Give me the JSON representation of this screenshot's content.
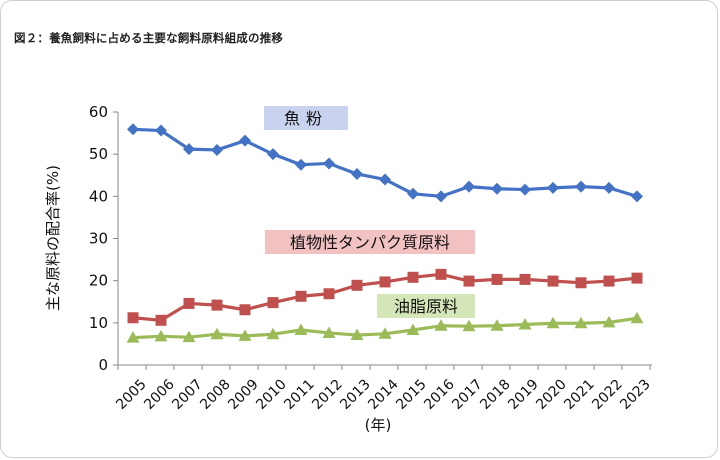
{
  "figure": {
    "title": "図２：養魚飼料に占める主要な飼料原料組成の推移"
  },
  "chart_data": {
    "type": "line",
    "title": "図２：養魚飼料に占める主要な飼料原料組成の推移",
    "xlabel": "(年)",
    "ylabel": "主な原料の配合率(%)",
    "ylim": [
      0,
      60
    ],
    "yticks": [
      0,
      10,
      20,
      30,
      40,
      50,
      60
    ],
    "grid": false,
    "legend": "inline-labels",
    "x": [
      2005,
      2006,
      2007,
      2008,
      2009,
      2010,
      2011,
      2012,
      2013,
      2014,
      2015,
      2016,
      2017,
      2018,
      2019,
      2020,
      2021,
      2022,
      2023
    ],
    "series": [
      {
        "name": "魚粉",
        "color": "#4472c4",
        "marker": "diamond",
        "label_bg": "#c9d3ef",
        "values": [
          55.9,
          55.6,
          51.2,
          51.0,
          53.2,
          50.0,
          47.5,
          47.8,
          45.3,
          44.0,
          40.6,
          40.0,
          42.3,
          41.8,
          41.6,
          42.0,
          42.3,
          42.0,
          40.0
        ]
      },
      {
        "name": "植物性タンパク質原料",
        "color": "#c0504d",
        "marker": "square",
        "label_bg": "#f2c2c2",
        "values": [
          11.2,
          10.6,
          14.6,
          14.2,
          13.1,
          14.8,
          16.3,
          16.9,
          18.9,
          19.7,
          20.8,
          21.5,
          19.9,
          20.3,
          20.3,
          19.9,
          19.5,
          19.9,
          20.6
        ]
      },
      {
        "name": "油脂原料",
        "color": "#9bbb59",
        "marker": "triangle",
        "label_bg": "#d5e6b8",
        "values": [
          6.5,
          6.8,
          6.6,
          7.3,
          6.9,
          7.3,
          8.3,
          7.6,
          7.1,
          7.4,
          8.3,
          9.3,
          9.2,
          9.3,
          9.6,
          9.9,
          9.9,
          10.1,
          11.1
        ]
      }
    ]
  }
}
